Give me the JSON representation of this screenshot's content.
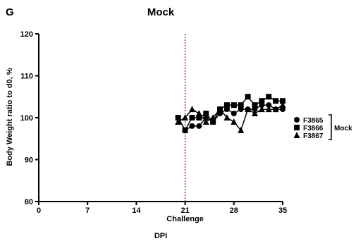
{
  "panel_label": "G",
  "chart_data": {
    "type": "line",
    "title": "Mock",
    "xlabel": "DPI",
    "ylabel": "Body Weight ratio to d0, %",
    "xlim": [
      0,
      35
    ],
    "ylim": [
      80,
      120
    ],
    "xticks": [
      0,
      7,
      14,
      21,
      28,
      35
    ],
    "yticks": [
      80,
      90,
      100,
      110,
      120
    ],
    "grid": false,
    "legend": {
      "placement": "right",
      "group_label": "Mock"
    },
    "annotations": [
      {
        "type": "vline",
        "x": 21,
        "label": "Challenge",
        "color": "#c0392b",
        "style": "dotted"
      }
    ],
    "series": [
      {
        "name": "F3865",
        "marker": "circle",
        "x": [
          20,
          21,
          22,
          23,
          24,
          25,
          26,
          27,
          28,
          29,
          30,
          31,
          32,
          33,
          34,
          35
        ],
        "values": [
          100,
          97,
          98,
          98,
          100,
          99,
          101,
          102,
          101,
          102,
          102,
          102,
          103,
          103,
          102,
          102
        ]
      },
      {
        "name": "F3866",
        "marker": "square",
        "x": [
          20,
          21,
          22,
          23,
          24,
          25,
          26,
          27,
          28,
          29,
          30,
          31,
          32,
          33,
          34,
          35
        ],
        "values": [
          100,
          97,
          100,
          100,
          101,
          99,
          102,
          103,
          103,
          103,
          105,
          103,
          104,
          105,
          104,
          104
        ]
      },
      {
        "name": "F3867",
        "marker": "triangle",
        "x": [
          20,
          21,
          22,
          23,
          24,
          25,
          26,
          27,
          28,
          29,
          30,
          31,
          32,
          33,
          34,
          35
        ],
        "values": [
          99,
          100,
          102,
          101,
          99,
          100,
          102,
          100,
          99,
          97,
          102,
          101,
          102,
          102,
          102,
          103
        ]
      }
    ]
  }
}
